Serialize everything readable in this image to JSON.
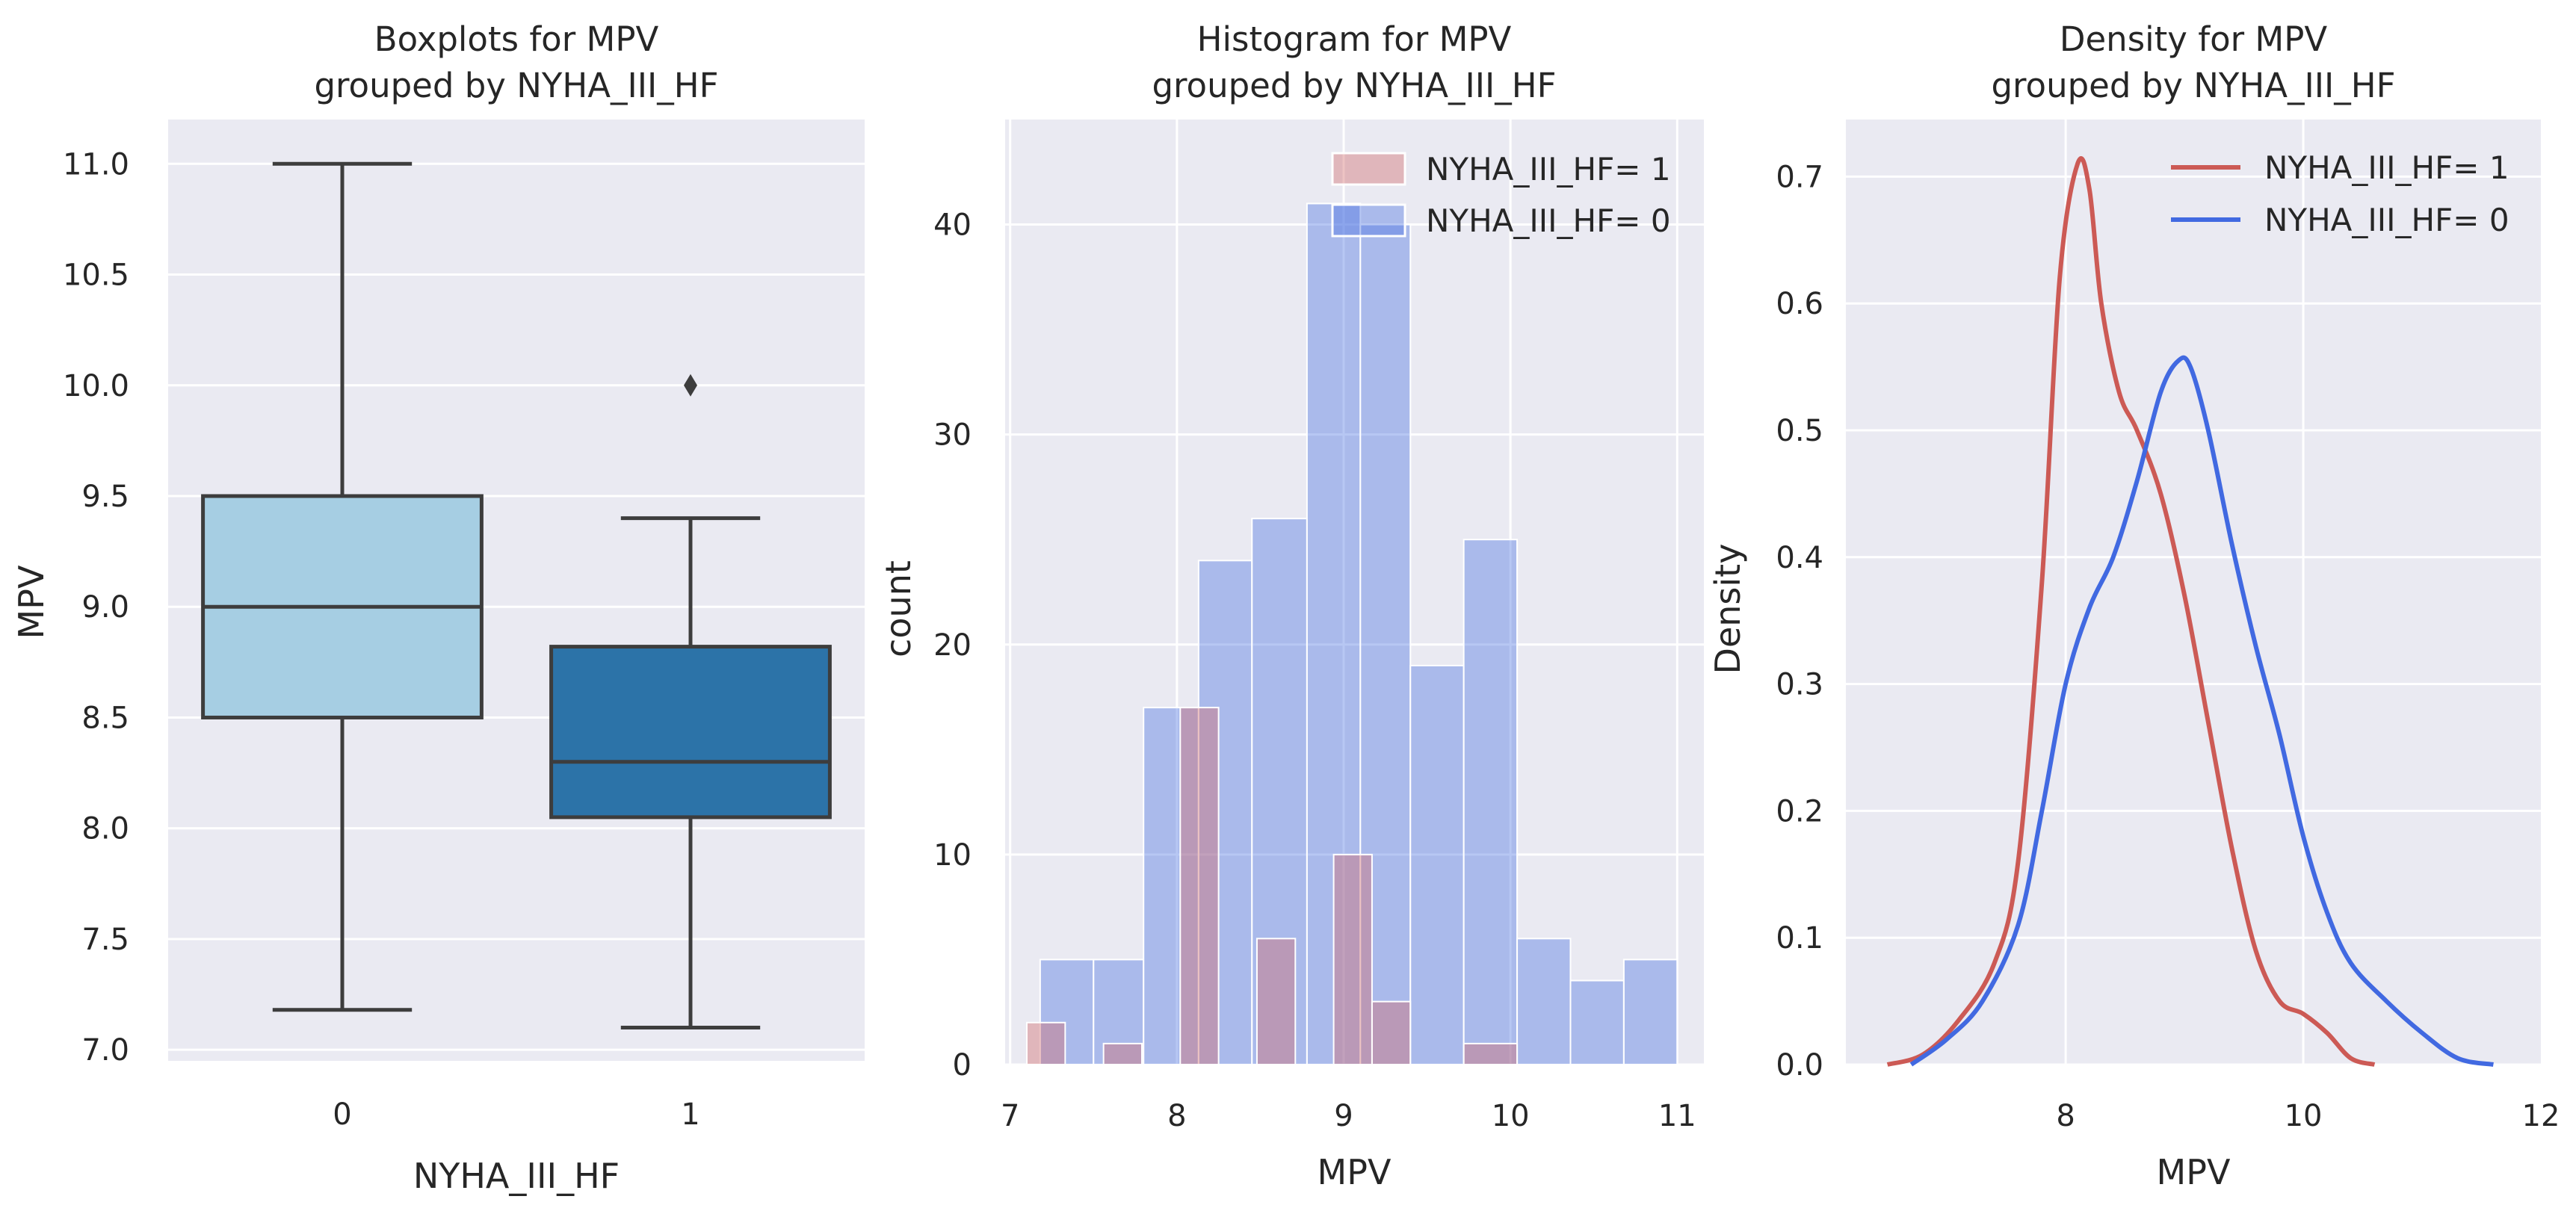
{
  "chart_data": [
    {
      "type": "box",
      "title_line1": "Boxplots for MPV",
      "title_line2": "grouped by NYHA_III_HF",
      "xlabel": "NYHA_III_HF",
      "ylabel": "MPV",
      "ylim": [
        6.95,
        11.2
      ],
      "yticks": [
        "7.0",
        "7.5",
        "8.0",
        "8.5",
        "9.0",
        "9.5",
        "10.0",
        "10.5",
        "11.0"
      ],
      "groups": [
        {
          "name": "0",
          "whisker_low": 7.18,
          "q1": 8.5,
          "median": 9.0,
          "q3": 9.5,
          "whisker_high": 11.0,
          "outliers": [],
          "color": "#a6cee3"
        },
        {
          "name": "1",
          "whisker_low": 7.1,
          "q1": 8.05,
          "median": 8.3,
          "q3": 8.82,
          "whisker_high": 9.4,
          "outliers": [
            10.0
          ],
          "color": "#2c73a8"
        }
      ]
    },
    {
      "type": "histogram",
      "title_line1": "Histogram for MPV",
      "title_line2": "grouped by NYHA_III_HF",
      "xlabel": "MPV",
      "ylabel": "count",
      "xlim": [
        6.97,
        11.16
      ],
      "ylim": [
        0,
        45
      ],
      "xticks": [
        "7",
        "8",
        "9",
        "10",
        "11"
      ],
      "yticks": [
        "0",
        "10",
        "20",
        "30",
        "40"
      ],
      "series": [
        {
          "name": "NYHA_III_HF= 1",
          "color": "#d16a6a",
          "bins": [
            [
              7.1,
              7.33,
              2
            ],
            [
              7.33,
              7.56,
              0
            ],
            [
              7.56,
              7.79,
              1
            ],
            [
              7.79,
              8.02,
              0
            ],
            [
              8.02,
              8.25,
              17
            ],
            [
              8.25,
              8.48,
              0
            ],
            [
              8.48,
              8.71,
              6
            ],
            [
              8.71,
              8.94,
              0
            ],
            [
              8.94,
              9.17,
              10
            ],
            [
              9.17,
              9.4,
              3
            ]
          ]
        },
        {
          "name": "NYHA_III_HF= 0",
          "color": "#4a74e0",
          "bins": [
            [
              7.18,
              7.5,
              5
            ],
            [
              7.5,
              7.8,
              5
            ],
            [
              7.8,
              8.13,
              17
            ],
            [
              8.13,
              8.45,
              24
            ],
            [
              8.45,
              8.78,
              26
            ],
            [
              8.78,
              9.1,
              41
            ],
            [
              9.1,
              9.4,
              40
            ],
            [
              9.4,
              9.72,
              19
            ],
            [
              9.72,
              10.04,
              25
            ],
            [
              10.04,
              10.36,
              6
            ],
            [
              10.36,
              10.68,
              4
            ],
            [
              10.68,
              11.0,
              5
            ]
          ]
        }
      ],
      "extra_bins_group1": [
        [
          9.72,
          10.04,
          1
        ]
      ]
    },
    {
      "type": "line",
      "title_line1": "Density for MPV",
      "title_line2": "grouped by NYHA_III_HF",
      "xlabel": "MPV",
      "ylabel": "Density",
      "xlim": [
        6.15,
        12.0
      ],
      "ylim": [
        0,
        0.745
      ],
      "xticks": [
        "8",
        "10",
        "12"
      ],
      "yticks": [
        "0.0",
        "0.1",
        "0.2",
        "0.3",
        "0.4",
        "0.5",
        "0.6",
        "0.7"
      ],
      "series": [
        {
          "name": "NYHA_III_HF= 1",
          "color": "#cc5a55",
          "x": [
            6.5,
            6.8,
            7.1,
            7.4,
            7.6,
            7.8,
            7.95,
            8.1,
            8.2,
            8.3,
            8.45,
            8.6,
            8.8,
            9.0,
            9.2,
            9.4,
            9.6,
            9.8,
            10.0,
            10.2,
            10.4,
            10.6
          ],
          "y": [
            0.0,
            0.008,
            0.035,
            0.08,
            0.16,
            0.38,
            0.62,
            0.71,
            0.69,
            0.6,
            0.53,
            0.5,
            0.45,
            0.37,
            0.27,
            0.17,
            0.09,
            0.05,
            0.04,
            0.025,
            0.005,
            0.0
          ]
        },
        {
          "name": "NYHA_III_HF= 0",
          "color": "#4169e1",
          "x": [
            6.7,
            7.0,
            7.3,
            7.6,
            7.8,
            8.0,
            8.2,
            8.4,
            8.6,
            8.8,
            8.95,
            9.05,
            9.2,
            9.4,
            9.6,
            9.8,
            10.0,
            10.2,
            10.4,
            10.7,
            11.0,
            11.3,
            11.6
          ],
          "y": [
            0.0,
            0.02,
            0.05,
            0.11,
            0.2,
            0.3,
            0.36,
            0.4,
            0.46,
            0.53,
            0.555,
            0.55,
            0.5,
            0.41,
            0.33,
            0.26,
            0.18,
            0.12,
            0.08,
            0.05,
            0.025,
            0.005,
            0.0
          ]
        }
      ]
    }
  ]
}
